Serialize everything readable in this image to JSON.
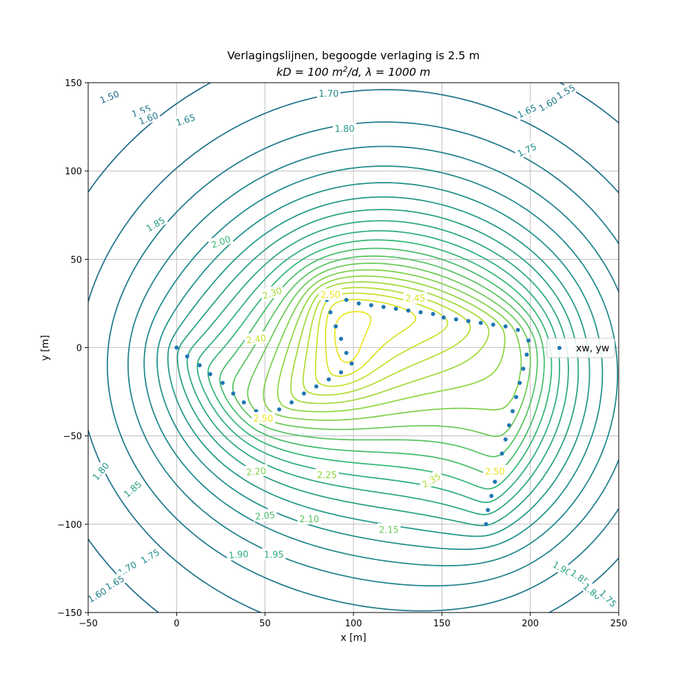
{
  "chart_data": {
    "type": "contour",
    "title_line1": "Verlagingslijnen, begoogde verlaging is 2.5 m",
    "title_line2": {
      "kD_part": "kD = 100 m",
      "kD_exp": "2",
      "kD_tail": "/d, ",
      "lambda_part": "λ = 1000 m"
    },
    "xlabel": "x [m]",
    "ylabel": "y [m]",
    "xlim": [
      -50,
      250
    ],
    "ylim": [
      -150,
      150
    ],
    "xticks": [
      -50,
      0,
      50,
      100,
      150,
      200,
      250
    ],
    "yticks": [
      -150,
      -100,
      -50,
      0,
      50,
      100,
      150
    ],
    "grid": true,
    "colormap": "viridis",
    "levels": [
      1.5,
      1.55,
      1.6,
      1.65,
      1.7,
      1.75,
      1.8,
      1.85,
      1.9,
      1.95,
      2.0,
      2.05,
      2.1,
      2.15,
      2.2,
      2.25,
      2.3,
      2.35,
      2.4,
      2.45,
      2.5
    ],
    "contour_labels": [
      {
        "text": "1.50",
        "x": -38,
        "y": 142,
        "angle": -22
      },
      {
        "text": "1.55",
        "x": -20,
        "y": 134,
        "angle": -20
      },
      {
        "text": "1.60",
        "x": -16,
        "y": 130,
        "angle": -20
      },
      {
        "text": "1.65",
        "x": 5,
        "y": 129,
        "angle": -18
      },
      {
        "text": "1.70",
        "x": 86,
        "y": 144,
        "angle": 0
      },
      {
        "text": "1.80",
        "x": 95,
        "y": 124,
        "angle": 0
      },
      {
        "text": "1.85",
        "x": -12,
        "y": 70,
        "angle": -30
      },
      {
        "text": "2.00",
        "x": 25,
        "y": 60,
        "angle": -20
      },
      {
        "text": "2.30",
        "x": 54,
        "y": 31,
        "angle": -18
      },
      {
        "text": "2.40",
        "x": 45,
        "y": 5,
        "angle": -8
      },
      {
        "text": "2.50",
        "x": 87,
        "y": 30,
        "angle": 0
      },
      {
        "text": "2.45",
        "x": 135,
        "y": 28,
        "angle": 0
      },
      {
        "text": "2.50",
        "x": 49,
        "y": -40,
        "angle": 0
      },
      {
        "text": "2.50",
        "x": 180,
        "y": -70,
        "angle": 0
      },
      {
        "text": "2.35",
        "x": 144,
        "y": -75,
        "angle": -30
      },
      {
        "text": "2.20",
        "x": 45,
        "y": -70,
        "angle": -5
      },
      {
        "text": "2.25",
        "x": 85,
        "y": -72,
        "angle": 0
      },
      {
        "text": "2.05",
        "x": 50,
        "y": -95,
        "angle": -5
      },
      {
        "text": "2.10",
        "x": 75,
        "y": -97,
        "angle": 0
      },
      {
        "text": "2.15",
        "x": 120,
        "y": -103,
        "angle": 0
      },
      {
        "text": "1.90",
        "x": 35,
        "y": -117,
        "angle": -5
      },
      {
        "text": "1.95",
        "x": 55,
        "y": -117,
        "angle": 0
      },
      {
        "text": "1.80",
        "x": -43,
        "y": -70,
        "angle": -50
      },
      {
        "text": "1.85",
        "x": -25,
        "y": -80,
        "angle": -40
      },
      {
        "text": "1.75",
        "x": -15,
        "y": -118,
        "angle": -30
      },
      {
        "text": "1.70",
        "x": -28,
        "y": -125,
        "angle": -30
      },
      {
        "text": "1.65",
        "x": -35,
        "y": -133,
        "angle": -30
      },
      {
        "text": "1.60",
        "x": -45,
        "y": -140,
        "angle": -30
      },
      {
        "text": "1.55",
        "x": 220,
        "y": 145,
        "angle": -30
      },
      {
        "text": "1.60",
        "x": 210,
        "y": 138,
        "angle": -30
      },
      {
        "text": "1.65",
        "x": 198,
        "y": 134,
        "angle": -25
      },
      {
        "text": "1.75",
        "x": 198,
        "y": 112,
        "angle": -25
      },
      {
        "text": "1.90",
        "x": 218,
        "y": -125,
        "angle": 30
      },
      {
        "text": "1.85",
        "x": 228,
        "y": -130,
        "angle": 35
      },
      {
        "text": "1.80",
        "x": 235,
        "y": -138,
        "angle": 40
      },
      {
        "text": "1.75",
        "x": 244,
        "y": -142,
        "angle": 45
      }
    ],
    "series": [
      {
        "name": "xw, yw",
        "color": "#1f77b4",
        "x": [
          0,
          6,
          13,
          19,
          26,
          32,
          38,
          45,
          51,
          58,
          65,
          72,
          79,
          86,
          93,
          99,
          96,
          93,
          90,
          87,
          85,
          83,
          90,
          96,
          103,
          110,
          117,
          124,
          131,
          138,
          145,
          151,
          158,
          165,
          172,
          179,
          186,
          193,
          199,
          198,
          196,
          194,
          192,
          190,
          188,
          186,
          184,
          182,
          180,
          178,
          176,
          175
        ],
        "y": [
          0,
          -5,
          -10,
          -15,
          -20,
          -26,
          -31,
          -36,
          -39,
          -35,
          -31,
          -26,
          -22,
          -18,
          -14,
          -9,
          -3,
          5,
          12,
          20,
          27,
          29,
          28,
          27,
          25,
          24,
          23,
          22,
          21,
          20,
          19,
          17,
          16,
          15,
          14,
          13,
          12,
          10,
          4,
          -4,
          -12,
          -20,
          -28,
          -36,
          -44,
          -52,
          -60,
          -68,
          -76,
          -84,
          -92,
          -100
        ]
      }
    ],
    "legend": {
      "position": "right",
      "label": "xw, yw"
    }
  }
}
